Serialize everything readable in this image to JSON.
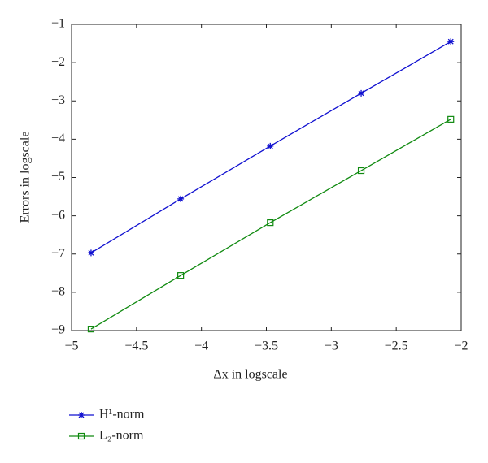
{
  "chart_data": {
    "type": "line",
    "x_label": "Δx in logscale",
    "y_label": "Errors in logscale",
    "x": [
      -4.85,
      -4.16,
      -3.47,
      -2.77,
      -2.08
    ],
    "series": [
      {
        "name": "H¹-norm",
        "color": "#1010d0",
        "marker": "asterisk",
        "values": [
          -6.97,
          -5.56,
          -4.18,
          -2.8,
          -1.45
        ]
      },
      {
        "name": "L₂-norm",
        "color": "#108a10",
        "marker": "square",
        "values": [
          -8.96,
          -7.56,
          -6.18,
          -4.82,
          -3.48
        ]
      }
    ],
    "xlim": [
      -5,
      -2
    ],
    "xticks": [
      {
        "value": -5,
        "label": "−5"
      },
      {
        "value": -4.5,
        "label": "−4.5"
      },
      {
        "value": -4,
        "label": "−4"
      },
      {
        "value": -3.5,
        "label": "−3.5"
      },
      {
        "value": -3,
        "label": "−3"
      },
      {
        "value": -2.5,
        "label": "−2.5"
      },
      {
        "value": -2,
        "label": "−2"
      }
    ],
    "ylim": [
      -9,
      -1
    ],
    "yticks": [
      {
        "value": -9,
        "label": "−9"
      },
      {
        "value": -8,
        "label": "−8"
      },
      {
        "value": -7,
        "label": "−7"
      },
      {
        "value": -6,
        "label": "−6"
      },
      {
        "value": -5,
        "label": "−5"
      },
      {
        "value": -4,
        "label": "−4"
      },
      {
        "value": -3,
        "label": "−3"
      },
      {
        "value": -2,
        "label": "−2"
      },
      {
        "value": -1,
        "label": "−1"
      }
    ],
    "grid": false,
    "legend": "bottom-left"
  }
}
